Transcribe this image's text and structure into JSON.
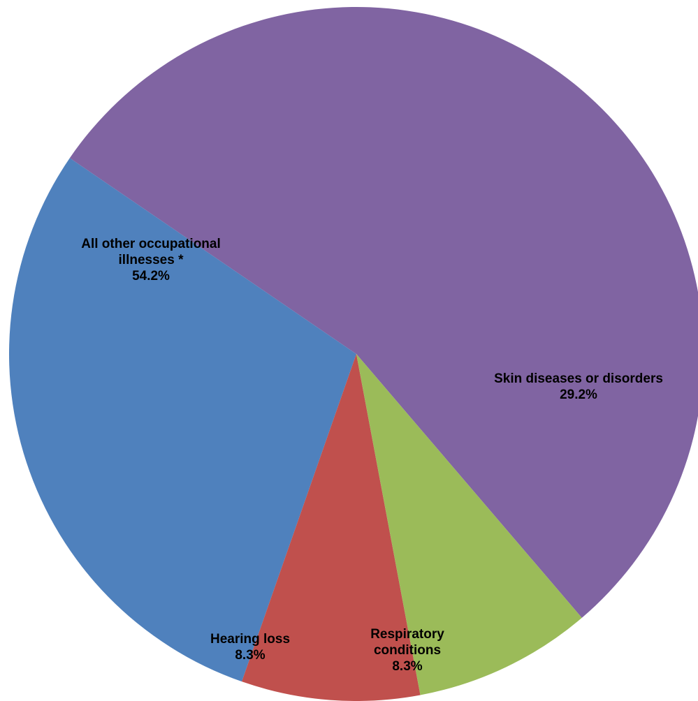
{
  "chart_data": {
    "type": "pie",
    "slices": [
      {
        "name": "All other occupational illnesses *",
        "label_lines": [
          "All other occupational",
          "illnesses *"
        ],
        "value": 54.2,
        "value_label": "54.2%",
        "color": "#8064A2"
      },
      {
        "name": "Skin diseases or disorders",
        "label_lines": [
          "Skin diseases or disorders"
        ],
        "value": 29.2,
        "value_label": "29.2%",
        "color": "#4F81BD"
      },
      {
        "name": "Respiratory conditions",
        "label_lines": [
          "Respiratory",
          "conditions"
        ],
        "value": 8.3,
        "value_label": "8.3%",
        "color": "#C0504D"
      },
      {
        "name": "Hearing loss",
        "label_lines": [
          "Hearing loss"
        ],
        "value": 8.3,
        "value_label": "8.3%",
        "color": "#9BBB59"
      }
    ]
  }
}
